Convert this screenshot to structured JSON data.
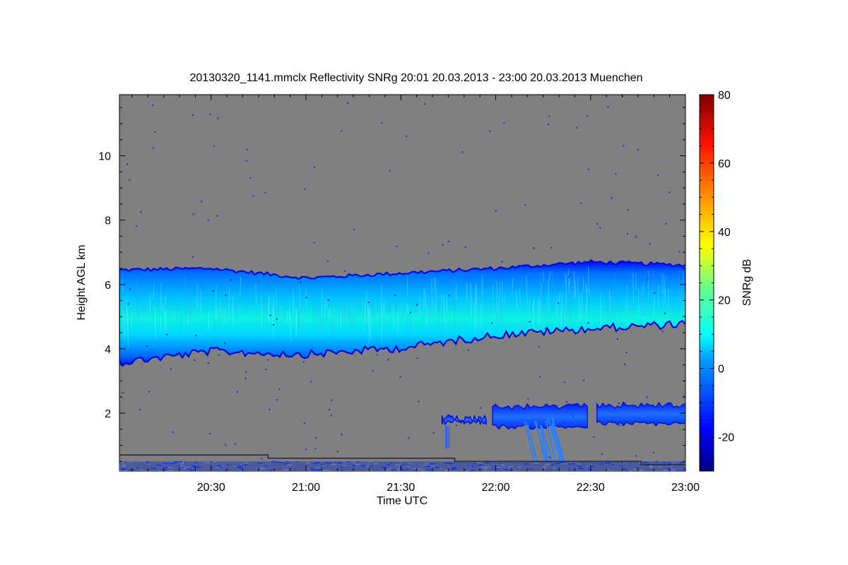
{
  "chart_data": {
    "type": "heatmap",
    "title": "20130320_1141.mmclx Reflectivity SNRg   20:01 20.03.2013 - 23:00 20.03.2013 Muenchen",
    "xlabel": "Time UTC",
    "ylabel": "Height AGL km",
    "colorbar_label": "SNRg dB",
    "x_range_minutes": [
      "20:01",
      "23:00"
    ],
    "x_ticks": [
      "20:30",
      "21:00",
      "21:30",
      "22:00",
      "22:30",
      "23:00"
    ],
    "y_range_km": [
      0.2,
      11.9
    ],
    "y_ticks": [
      "2",
      "4",
      "6",
      "8",
      "10"
    ],
    "colorbar_range_db": [
      -30,
      80
    ],
    "colorbar_ticks": [
      "-20",
      "0",
      "20",
      "40",
      "60",
      "80"
    ],
    "background_color": "#808080",
    "cloud_layer": {
      "description_times": [
        "20:01",
        "20:30",
        "21:00",
        "21:30",
        "22:00",
        "22:30",
        "23:00"
      ],
      "base_km": [
        3.7,
        4.05,
        3.95,
        4.15,
        4.55,
        4.75,
        4.9
      ],
      "top_km": [
        6.45,
        6.5,
        6.2,
        6.35,
        6.5,
        6.7,
        6.6
      ],
      "max_snr_db": 12
    },
    "low_cloud_patches": [
      {
        "start": "21:43",
        "end": "21:57",
        "base_km": 1.65,
        "top_km": 1.95
      },
      {
        "start": "21:59",
        "end": "22:29",
        "base_km": 1.5,
        "top_km": 2.3
      },
      {
        "start": "22:32",
        "end": "23:00",
        "base_km": 1.6,
        "top_km": 2.35
      }
    ]
  }
}
